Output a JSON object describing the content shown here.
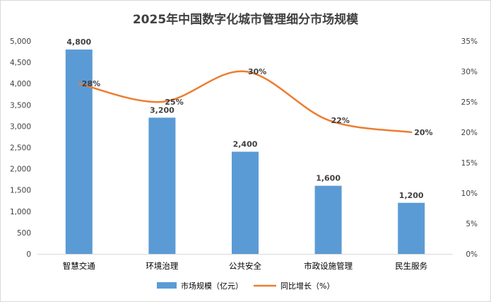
{
  "chart_data": {
    "type": "bar",
    "title": "2025年中国数字化城市管理细分市场规模",
    "categories": [
      "智慧交通",
      "环境治理",
      "公共安全",
      "市政设施管理",
      "民生服务"
    ],
    "series": [
      {
        "name": "市场规模（亿元）",
        "type": "bar",
        "axis": "left",
        "color": "#5b9bd5",
        "values": [
          4800,
          3200,
          2400,
          1600,
          1200
        ],
        "labels": [
          "4,800",
          "3,200",
          "2,400",
          "1,600",
          "1,200"
        ]
      },
      {
        "name": "同比增长（%）",
        "type": "line",
        "smooth": true,
        "axis": "right",
        "color": "#ed7d31",
        "values": [
          28,
          25,
          30,
          22,
          20
        ],
        "labels": [
          "28%",
          "25%",
          "30%",
          "22%",
          "20%"
        ]
      }
    ],
    "y_left": {
      "ylim": [
        0,
        5000
      ],
      "ticks": [
        0,
        500,
        1000,
        1500,
        2000,
        2500,
        3000,
        3500,
        4000,
        4500,
        5000
      ],
      "tick_labels": [
        "0",
        "500",
        "1,000",
        "1,500",
        "2,000",
        "2,500",
        "3,000",
        "3,500",
        "4,000",
        "4,500",
        "5,000"
      ]
    },
    "y_right": {
      "ylim": [
        0,
        35
      ],
      "ticks": [
        0,
        5,
        10,
        15,
        20,
        25,
        30,
        35
      ],
      "tick_labels": [
        "0%",
        "5%",
        "10%",
        "15%",
        "20%",
        "25%",
        "30%",
        "35%"
      ]
    },
    "grid": false,
    "legend": "bottom"
  }
}
